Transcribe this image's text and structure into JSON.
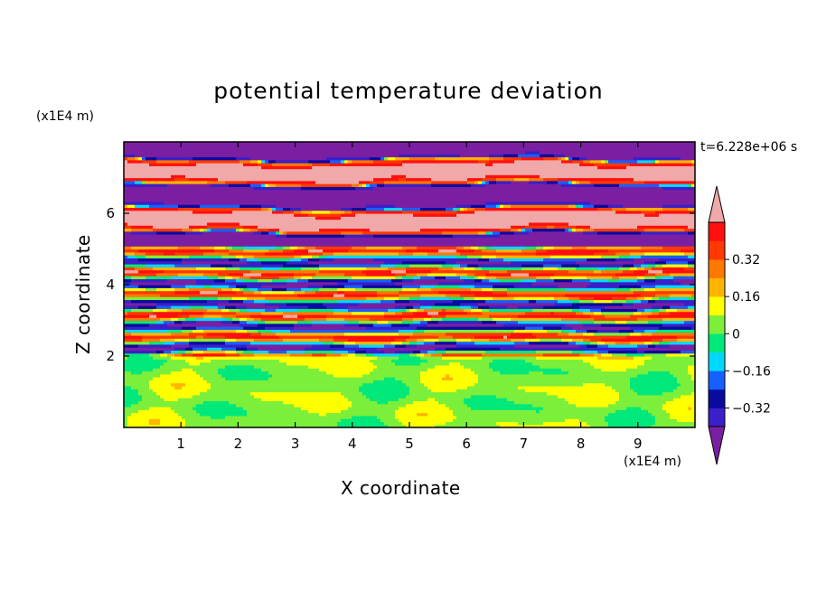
{
  "chart_data": {
    "type": "heatmap",
    "title": "potential temperature deviation",
    "xlabel": "X coordinate",
    "ylabel": "Z coordinate",
    "x_unit": "(x1E4 m)",
    "z_unit": "(x1E4 m)",
    "time_label": "t=6.228e+06 s",
    "xlim": [
      0,
      10
    ],
    "ylim": [
      0,
      8
    ],
    "x_ticks": [
      "1",
      "2",
      "3",
      "4",
      "5",
      "6",
      "7",
      "8",
      "9"
    ],
    "y_ticks": [
      "2",
      "4",
      "6"
    ],
    "colorbar": {
      "levels": [
        -0.48,
        -0.4,
        -0.32,
        -0.24,
        -0.16,
        -0.08,
        0,
        0.08,
        0.16,
        0.24,
        0.32,
        0.4,
        0.48
      ],
      "tick_labels": [
        "0.32",
        "0.16",
        "0",
        "−0.16",
        "−0.32"
      ],
      "colors": [
        "#7b1fa2",
        "#3b1fc8",
        "#0a0aa0",
        "#1560ff",
        "#00d8ff",
        "#00e87a",
        "#7cef3a",
        "#ffff00",
        "#ffb400",
        "#ff7800",
        "#ff3800",
        "#ff1010",
        "#f0a8a8"
      ],
      "extend": "both"
    },
    "bands": [
      {
        "z_from": 0,
        "z_to": 2,
        "pattern": "weak green/lime deviations"
      },
      {
        "z_from": 2,
        "z_to": 5,
        "pattern": "thin alternating layers spanning full range"
      },
      {
        "z_from": 5,
        "z_to": 8,
        "pattern": "alternating strong positive (pink) and strong negative (purple) layers"
      }
    ]
  }
}
